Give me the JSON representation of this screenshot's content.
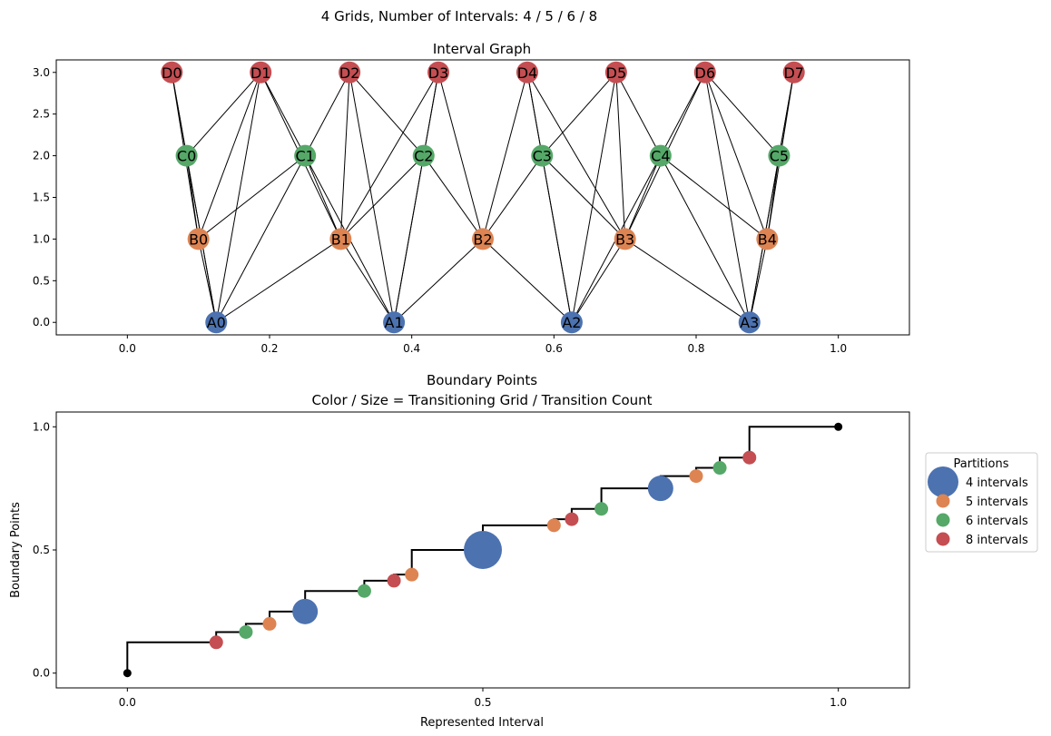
{
  "suptitle": "4 Grids, Number of Intervals: 4 / 5 / 6 / 8",
  "colors": {
    "A": "#4c72b0",
    "B": "#dd8452",
    "C": "#55a868",
    "D": "#c44e52",
    "edge": "#000000",
    "endpoint": "#000000"
  },
  "chart_data": [
    {
      "type": "graph",
      "title": "Interval Graph",
      "xlim": [
        -0.1,
        1.1
      ],
      "ylim": [
        -0.15,
        3.15
      ],
      "xticks": [
        "0.0",
        "0.2",
        "0.4",
        "0.6",
        "0.8",
        "1.0"
      ],
      "yticks": [
        "0.0",
        "0.5",
        "1.0",
        "1.5",
        "2.0",
        "2.5",
        "3.0"
      ],
      "nodes": [
        {
          "id": "A0",
          "label": "A0",
          "x": 0.125,
          "y": 0,
          "group": "A"
        },
        {
          "id": "A1",
          "label": "A1",
          "x": 0.375,
          "y": 0,
          "group": "A"
        },
        {
          "id": "A2",
          "label": "A2",
          "x": 0.625,
          "y": 0,
          "group": "A"
        },
        {
          "id": "A3",
          "label": "A3",
          "x": 0.875,
          "y": 0,
          "group": "A"
        },
        {
          "id": "B0",
          "label": "B0",
          "x": 0.1,
          "y": 1,
          "group": "B"
        },
        {
          "id": "B1",
          "label": "B1",
          "x": 0.3,
          "y": 1,
          "group": "B"
        },
        {
          "id": "B2",
          "label": "B2",
          "x": 0.5,
          "y": 1,
          "group": "B"
        },
        {
          "id": "B3",
          "label": "B3",
          "x": 0.7,
          "y": 1,
          "group": "B"
        },
        {
          "id": "B4",
          "label": "B4",
          "x": 0.9,
          "y": 1,
          "group": "B"
        },
        {
          "id": "C0",
          "label": "C0",
          "x": 0.0833,
          "y": 2,
          "group": "C"
        },
        {
          "id": "C1",
          "label": "C1",
          "x": 0.25,
          "y": 2,
          "group": "C"
        },
        {
          "id": "C2",
          "label": "C2",
          "x": 0.4167,
          "y": 2,
          "group": "C"
        },
        {
          "id": "C3",
          "label": "C3",
          "x": 0.5833,
          "y": 2,
          "group": "C"
        },
        {
          "id": "C4",
          "label": "C4",
          "x": 0.75,
          "y": 2,
          "group": "C"
        },
        {
          "id": "C5",
          "label": "C5",
          "x": 0.9167,
          "y": 2,
          "group": "C"
        },
        {
          "id": "D0",
          "label": "D0",
          "x": 0.0625,
          "y": 3,
          "group": "D"
        },
        {
          "id": "D1",
          "label": "D1",
          "x": 0.1875,
          "y": 3,
          "group": "D"
        },
        {
          "id": "D2",
          "label": "D2",
          "x": 0.3125,
          "y": 3,
          "group": "D"
        },
        {
          "id": "D3",
          "label": "D3",
          "x": 0.4375,
          "y": 3,
          "group": "D"
        },
        {
          "id": "D4",
          "label": "D4",
          "x": 0.5625,
          "y": 3,
          "group": "D"
        },
        {
          "id": "D5",
          "label": "D5",
          "x": 0.6875,
          "y": 3,
          "group": "D"
        },
        {
          "id": "D6",
          "label": "D6",
          "x": 0.8125,
          "y": 3,
          "group": "D"
        },
        {
          "id": "D7",
          "label": "D7",
          "x": 0.9375,
          "y": 3,
          "group": "D"
        }
      ],
      "edges": [
        [
          "A0",
          "B0"
        ],
        [
          "A0",
          "C0"
        ],
        [
          "A0",
          "C1"
        ],
        [
          "A0",
          "D0"
        ],
        [
          "A0",
          "D1"
        ],
        [
          "A1",
          "B1"
        ],
        [
          "A1",
          "C1"
        ],
        [
          "A1",
          "C2"
        ],
        [
          "A1",
          "D2"
        ],
        [
          "A1",
          "D3"
        ],
        [
          "A2",
          "B3"
        ],
        [
          "A2",
          "C3"
        ],
        [
          "A2",
          "C4"
        ],
        [
          "A2",
          "D4"
        ],
        [
          "A2",
          "D5"
        ],
        [
          "A3",
          "B3"
        ],
        [
          "A3",
          "C4"
        ],
        [
          "A3",
          "C5"
        ],
        [
          "A3",
          "D6"
        ],
        [
          "A3",
          "D7"
        ],
        [
          "A0",
          "B1"
        ],
        [
          "A1",
          "B2"
        ],
        [
          "A2",
          "B2"
        ],
        [
          "A3",
          "B4"
        ],
        [
          "B0",
          "C0"
        ],
        [
          "B0",
          "C1"
        ],
        [
          "B0",
          "D0"
        ],
        [
          "B0",
          "D1"
        ],
        [
          "B1",
          "C1"
        ],
        [
          "B1",
          "C2"
        ],
        [
          "B1",
          "D1"
        ],
        [
          "B1",
          "D2"
        ],
        [
          "B1",
          "D3"
        ],
        [
          "B2",
          "C2"
        ],
        [
          "B2",
          "C3"
        ],
        [
          "B2",
          "D3"
        ],
        [
          "B2",
          "D4"
        ],
        [
          "B3",
          "C3"
        ],
        [
          "B3",
          "C4"
        ],
        [
          "B3",
          "D4"
        ],
        [
          "B3",
          "D5"
        ],
        [
          "B3",
          "D6"
        ],
        [
          "B4",
          "C4"
        ],
        [
          "B4",
          "C5"
        ],
        [
          "B4",
          "D6"
        ],
        [
          "B4",
          "D7"
        ],
        [
          "C0",
          "D0"
        ],
        [
          "C0",
          "D1"
        ],
        [
          "C1",
          "D1"
        ],
        [
          "C1",
          "D2"
        ],
        [
          "C2",
          "D2"
        ],
        [
          "C2",
          "D3"
        ],
        [
          "C3",
          "D4"
        ],
        [
          "C3",
          "D5"
        ],
        [
          "C4",
          "D5"
        ],
        [
          "C4",
          "D6"
        ],
        [
          "C5",
          "D6"
        ],
        [
          "C5",
          "D7"
        ]
      ]
    },
    {
      "type": "scatter",
      "title": [
        "Boundary Points",
        "Color / Size = Transitioning Grid / Transition Count"
      ],
      "xlabel": "Represented Interval",
      "ylabel": "Boundary Points",
      "xlim": [
        -0.1,
        1.1
      ],
      "ylim": [
        -0.06,
        1.06
      ],
      "xticks": [
        "0.0",
        "0.5",
        "1.0"
      ],
      "yticks": [
        "0.0",
        "0.5",
        "1.0"
      ],
      "step_line": [
        [
          0,
          0
        ],
        [
          0,
          0.125
        ],
        [
          0.125,
          0.125
        ],
        [
          0.125,
          0.1667
        ],
        [
          0.1667,
          0.1667
        ],
        [
          0.1667,
          0.2
        ],
        [
          0.2,
          0.2
        ],
        [
          0.2,
          0.25
        ],
        [
          0.25,
          0.25
        ],
        [
          0.25,
          0.3333
        ],
        [
          0.3333,
          0.3333
        ],
        [
          0.3333,
          0.375
        ],
        [
          0.375,
          0.375
        ],
        [
          0.375,
          0.4
        ],
        [
          0.4,
          0.4
        ],
        [
          0.4,
          0.5
        ],
        [
          0.5,
          0.5
        ],
        [
          0.5,
          0.6
        ],
        [
          0.6,
          0.6
        ],
        [
          0.6,
          0.625
        ],
        [
          0.625,
          0.625
        ],
        [
          0.625,
          0.6667
        ],
        [
          0.6667,
          0.6667
        ],
        [
          0.6667,
          0.75
        ],
        [
          0.75,
          0.75
        ],
        [
          0.75,
          0.8
        ],
        [
          0.8,
          0.8
        ],
        [
          0.8,
          0.8333
        ],
        [
          0.8333,
          0.8333
        ],
        [
          0.8333,
          0.875
        ],
        [
          0.875,
          0.875
        ],
        [
          0.875,
          1
        ],
        [
          1,
          1
        ]
      ],
      "endpoints": [
        [
          0,
          0
        ],
        [
          1,
          1
        ]
      ],
      "points": [
        {
          "x": 0.125,
          "y": 0.125,
          "series": "8 intervals",
          "count": 1
        },
        {
          "x": 0.1667,
          "y": 0.1667,
          "series": "6 intervals",
          "count": 1
        },
        {
          "x": 0.2,
          "y": 0.2,
          "series": "5 intervals",
          "count": 1
        },
        {
          "x": 0.25,
          "y": 0.25,
          "series": "4 intervals",
          "count": 2
        },
        {
          "x": 0.3333,
          "y": 0.3333,
          "series": "6 intervals",
          "count": 1
        },
        {
          "x": 0.375,
          "y": 0.375,
          "series": "8 intervals",
          "count": 1
        },
        {
          "x": 0.4,
          "y": 0.4,
          "series": "5 intervals",
          "count": 1
        },
        {
          "x": 0.5,
          "y": 0.5,
          "series": "4 intervals",
          "count": 3
        },
        {
          "x": 0.6,
          "y": 0.6,
          "series": "5 intervals",
          "count": 1
        },
        {
          "x": 0.625,
          "y": 0.625,
          "series": "8 intervals",
          "count": 1
        },
        {
          "x": 0.6667,
          "y": 0.6667,
          "series": "6 intervals",
          "count": 1
        },
        {
          "x": 0.75,
          "y": 0.75,
          "series": "4 intervals",
          "count": 2
        },
        {
          "x": 0.8,
          "y": 0.8,
          "series": "5 intervals",
          "count": 1
        },
        {
          "x": 0.8333,
          "y": 0.8333,
          "series": "6 intervals",
          "count": 1
        },
        {
          "x": 0.875,
          "y": 0.875,
          "series": "8 intervals",
          "count": 1
        }
      ],
      "legend": {
        "title": "Partitions",
        "placement": "right",
        "entries": [
          {
            "label": "4 intervals",
            "color": "#4c72b0"
          },
          {
            "label": "5 intervals",
            "color": "#dd8452"
          },
          {
            "label": "6 intervals",
            "color": "#55a868"
          },
          {
            "label": "8 intervals",
            "color": "#c44e52"
          }
        ]
      }
    }
  ]
}
